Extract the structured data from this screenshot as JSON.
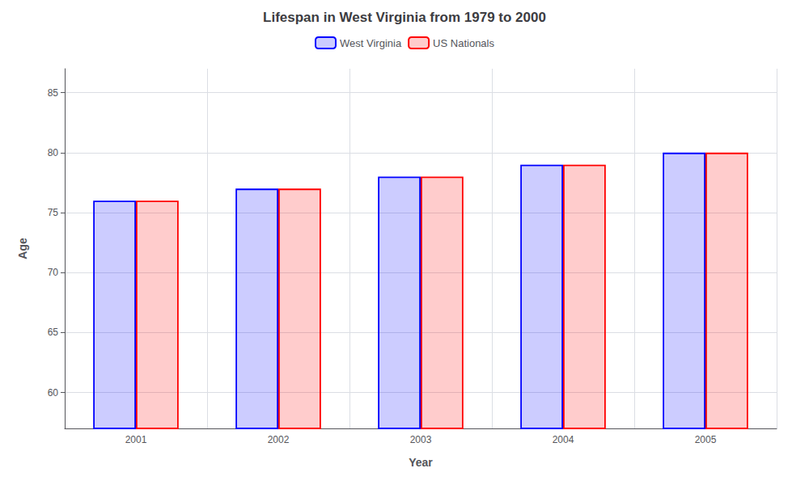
{
  "chart_data": {
    "type": "bar",
    "title": "Lifespan in West Virginia from 1979 to 2000",
    "xlabel": "Year",
    "ylabel": "Age",
    "categories": [
      "2001",
      "2002",
      "2003",
      "2004",
      "2005"
    ],
    "series": [
      {
        "name": "West Virginia",
        "color": "#0000ff",
        "values": [
          76,
          77,
          78,
          79,
          80
        ]
      },
      {
        "name": "US Nationals",
        "color": "#ff0000",
        "values": [
          76,
          77,
          78,
          79,
          80
        ]
      }
    ],
    "ylim": [
      57,
      87
    ],
    "yticks": [
      60,
      65,
      70,
      75,
      80,
      85
    ],
    "grid": true,
    "legend": "upper center"
  }
}
